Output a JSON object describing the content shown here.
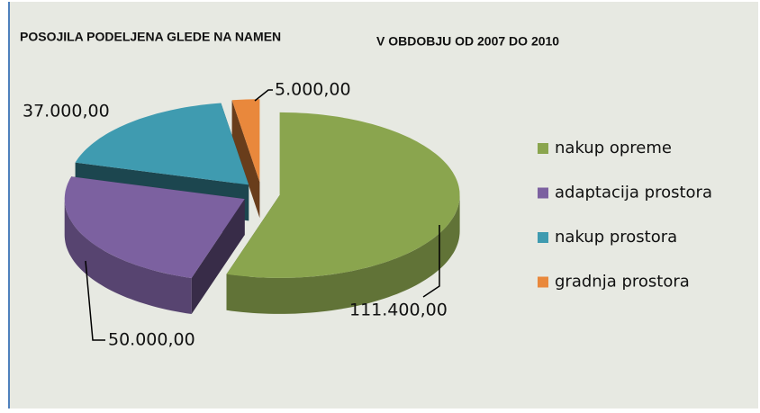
{
  "chart_data": {
    "type": "pie",
    "title": "POSOJILA PODELJENA GLEDE NA NAMEN",
    "subtitle": "V OBDOBJU OD 2007 DO 2010",
    "categories": [
      "nakup opreme",
      "adaptacija prostora",
      "nakup prostora",
      "gradnja prostora"
    ],
    "values": [
      111400,
      50000,
      37000,
      5000
    ],
    "value_labels": [
      "111.400,00",
      "50.000,00",
      "37.000,00",
      "5.000,00"
    ],
    "colors": [
      "#8aa54e",
      "#7c61a0",
      "#3f9bb0",
      "#e9883c"
    ],
    "legend": "right"
  }
}
